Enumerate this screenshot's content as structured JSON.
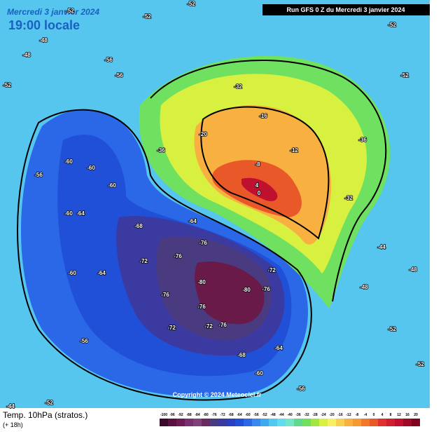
{
  "header": {
    "date": "Mercredi 3 janvier 2024",
    "time": "19:00 locale",
    "run": "Run GFS 0 Z du Mercredi 3 janvier 2024"
  },
  "footer": {
    "title": "Temp. 10hPa (stratos.)",
    "subtitle": "(+ 18h)",
    "copyright": "Copyright © 2024 Meteociel.fr"
  },
  "scale": {
    "labels": [
      -100,
      -96,
      -92,
      -88,
      -84,
      -80,
      -76,
      -72,
      -68,
      -64,
      -60,
      -56,
      -52,
      -48,
      -44,
      -40,
      -36,
      -32,
      -28,
      -24,
      -20,
      -16,
      -12,
      -8,
      -4,
      0,
      4,
      8,
      12,
      16,
      20
    ],
    "colors": [
      "#3a0a2a",
      "#5a1040",
      "#6e1a55",
      "#7a3070",
      "#80407a",
      "#6a2a60",
      "#4a3a80",
      "#3a3aa0",
      "#2a40c0",
      "#2050d8",
      "#2a68e8",
      "#3888f0",
      "#40a8f0",
      "#50c8f0",
      "#60dcf0",
      "#70e8c8",
      "#60d890",
      "#70e060",
      "#a0e840",
      "#d8f040",
      "#f8f060",
      "#f8d050",
      "#f8b040",
      "#f89830",
      "#f07828",
      "#e85828",
      "#e03030",
      "#d02030",
      "#c01030",
      "#a00828",
      "#800020"
    ]
  },
  "map_labels": [
    -52,
    -52,
    -52,
    -52,
    -48,
    -48,
    -52,
    -56,
    -56,
    -32,
    -16,
    -20,
    -36,
    -12,
    -8,
    4,
    0,
    -36,
    -32,
    -60,
    -60,
    -56,
    -60,
    -60,
    -64,
    -68,
    -64,
    -76,
    -72,
    -76,
    -80,
    -80,
    -76,
    -72,
    -76,
    -76,
    -72,
    -76,
    -72,
    -68,
    -64,
    -60,
    -56,
    -60,
    -64,
    -48,
    -44,
    -48,
    -52,
    -52,
    -56,
    -52,
    -44,
    -52
  ]
}
